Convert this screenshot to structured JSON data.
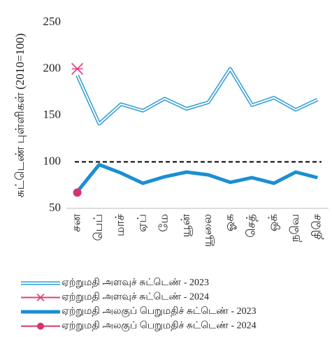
{
  "chart_data": {
    "type": "line",
    "ylabel": "சுட்டெண் புள்ளிகள் (2010=100)",
    "categories": [
      "சன",
      "பெப்",
      "மாச்",
      "ஏப்",
      "மே",
      "யூன்",
      "யூலை",
      "ஓக",
      "செத்",
      "ஒக்",
      "நவெ",
      "திசெ"
    ],
    "series": [
      {
        "name": "ஏற்றுமதி அளவுச் சுட்டெண் - 2023",
        "color": "#2e9bd6",
        "style": "double",
        "values": [
          193,
          141,
          162,
          155,
          168,
          157,
          164,
          200,
          161,
          169,
          156,
          167
        ]
      },
      {
        "name": "ஏற்றுமதி அளவுச் சுட்டெண் - 2024",
        "color": "#e0407a",
        "marker": "star",
        "values": [
          200,
          null,
          null,
          null,
          null,
          null,
          null,
          null,
          null,
          null,
          null,
          null
        ]
      },
      {
        "name": "ஏற்றுமதி அலகுப் பெறுமதிச் சுட்டெண் - 2023",
        "color": "#1b8fd2",
        "style": "thick",
        "values": [
          68,
          97,
          88,
          77,
          84,
          89,
          86,
          78,
          83,
          77,
          89,
          83
        ]
      },
      {
        "name": "ஏற்றுமதி அலகுப் பெறுமதிச் சுட்டெண் - 2024",
        "color": "#d6336c",
        "marker": "circle",
        "values": [
          67,
          null,
          null,
          null,
          null,
          null,
          null,
          null,
          null,
          null,
          null,
          null
        ]
      }
    ],
    "reference_line": 100,
    "ylim": [
      50,
      250
    ],
    "yticks": [
      50,
      100,
      150,
      200,
      250
    ],
    "grid": false
  }
}
